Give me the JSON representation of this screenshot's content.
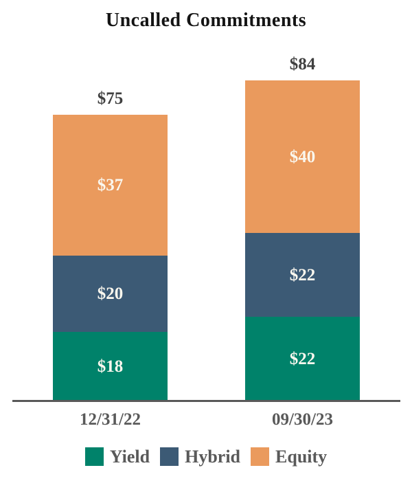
{
  "chart_data": {
    "type": "bar",
    "stacked": true,
    "title": "Uncalled Commitments",
    "categories": [
      "12/31/22",
      "09/30/23"
    ],
    "series": [
      {
        "name": "Yield",
        "color": "#00826A",
        "values": [
          18,
          22
        ]
      },
      {
        "name": "Hybrid",
        "color": "#3C5A75",
        "values": [
          20,
          22
        ]
      },
      {
        "name": "Equity",
        "color": "#EA9A5D",
        "values": [
          37,
          40
        ]
      }
    ],
    "totals": [
      75,
      84
    ],
    "total_labels": [
      "$75",
      "$84"
    ],
    "segment_labels": [
      [
        "$18",
        "$20",
        "$37"
      ],
      [
        "$22",
        "$22",
        "$40"
      ]
    ],
    "value_prefix": "$",
    "legend": [
      "Yield",
      "Hybrid",
      "Equity"
    ],
    "legend_position": "bottom",
    "grid": false,
    "axis_color": "#595959",
    "total_label_color": "#404040",
    "segment_label_color": "#FAF7EE"
  }
}
